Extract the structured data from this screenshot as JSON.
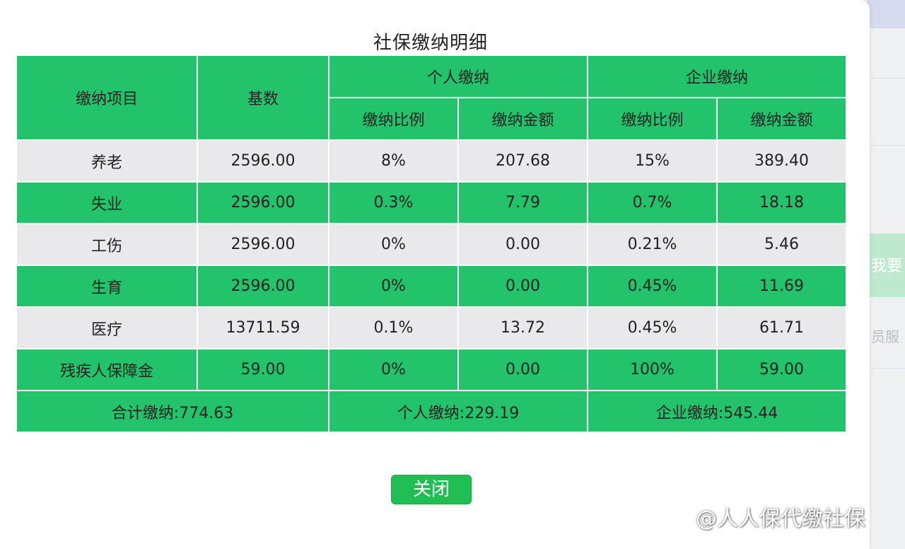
{
  "dialog": {
    "title": "社保缴纳明细",
    "close_label": "关闭"
  },
  "table": {
    "header": {
      "item": "缴纳项目",
      "base": "基数",
      "personal": "个人缴纳",
      "company": "企业缴纳",
      "ratio": "缴纳比例",
      "amount": "缴纳金额"
    },
    "rows": [
      {
        "item": "养老",
        "base": "2596.00",
        "p_ratio": "8%",
        "p_amount": "207.68",
        "c_ratio": "15%",
        "c_amount": "389.40"
      },
      {
        "item": "失业",
        "base": "2596.00",
        "p_ratio": "0.3%",
        "p_amount": "7.79",
        "c_ratio": "0.7%",
        "c_amount": "18.18"
      },
      {
        "item": "工伤",
        "base": "2596.00",
        "p_ratio": "0%",
        "p_amount": "0.00",
        "c_ratio": "0.21%",
        "c_amount": "5.46"
      },
      {
        "item": "生育",
        "base": "2596.00",
        "p_ratio": "0%",
        "p_amount": "0.00",
        "c_ratio": "0.45%",
        "c_amount": "11.69"
      },
      {
        "item": "医疗",
        "base": "13711.59",
        "p_ratio": "0.1%",
        "p_amount": "13.72",
        "c_ratio": "0.45%",
        "c_amount": "61.71"
      },
      {
        "item": "残疾人保障金",
        "base": "59.00",
        "p_ratio": "0%",
        "p_amount": "0.00",
        "c_ratio": "100%",
        "c_amount": "59.00"
      }
    ],
    "footer": {
      "total": "合计缴纳:774.63",
      "personal_total": "个人缴纳:229.19",
      "company_total": "企业缴纳:545.44"
    }
  },
  "background": {
    "button_fragment": "我要",
    "text_fragment": "员服"
  },
  "watermark": {
    "text": "@人人保代缴社保"
  },
  "colors": {
    "table_green": "#22c36a",
    "table_gray": "#e9e9eb",
    "button_green": "#1fbf54"
  }
}
